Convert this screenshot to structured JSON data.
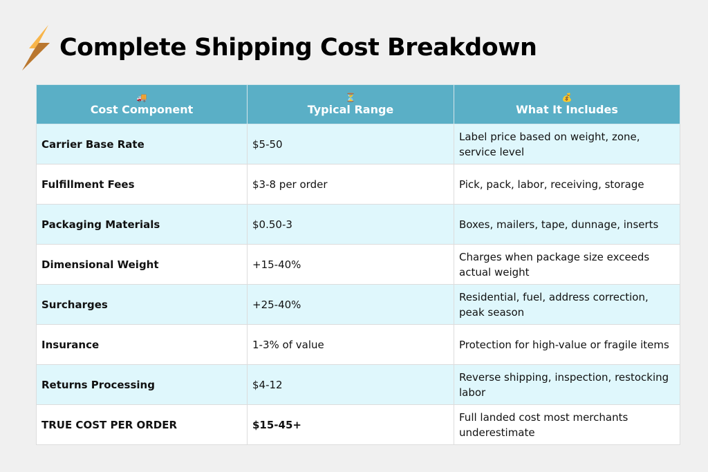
{
  "header": {
    "title": "Complete Shipping Cost Breakdown",
    "icon": "lightning-bolt-icon"
  },
  "table": {
    "columns": [
      {
        "icon": "🚚",
        "icon_name": "truck-icon",
        "label": "Cost Component"
      },
      {
        "icon": "⏳",
        "icon_name": "hourglass-icon",
        "label": "Typical Range"
      },
      {
        "icon": "💰",
        "icon_name": "money-bag-icon",
        "label": "What It Includes"
      }
    ],
    "rows": [
      {
        "component": "Carrier Base Rate",
        "range": "$5-50",
        "includes": "Label price based on weight, zone, service level"
      },
      {
        "component": "Fulfillment Fees",
        "range": "$3-8 per order",
        "includes": "Pick, pack, labor, receiving, storage"
      },
      {
        "component": "Packaging Materials",
        "range": "$0.50-3",
        "includes": "Boxes, mailers, tape, dunnage, inserts"
      },
      {
        "component": "Dimensional Weight",
        "range": "+15-40%",
        "includes": "Charges when package size exceeds actual weight"
      },
      {
        "component": "Surcharges",
        "range": "+25-40%",
        "includes": "Residential, fuel, address correction, peak season"
      },
      {
        "component": "Insurance",
        "range": "1-3% of value",
        "includes": "Protection for high-value or fragile items"
      },
      {
        "component": "Returns Processing",
        "range": "$4-12",
        "includes": "Reverse shipping, inspection, restocking labor"
      },
      {
        "component": "TRUE COST PER ORDER",
        "range": "$15-45+",
        "includes": "Full landed cost most merchants underestimate"
      }
    ]
  },
  "colors": {
    "header_bg": "#5aafc6",
    "row_alt": "#dff7fc",
    "page_bg": "#f0f0f0"
  }
}
